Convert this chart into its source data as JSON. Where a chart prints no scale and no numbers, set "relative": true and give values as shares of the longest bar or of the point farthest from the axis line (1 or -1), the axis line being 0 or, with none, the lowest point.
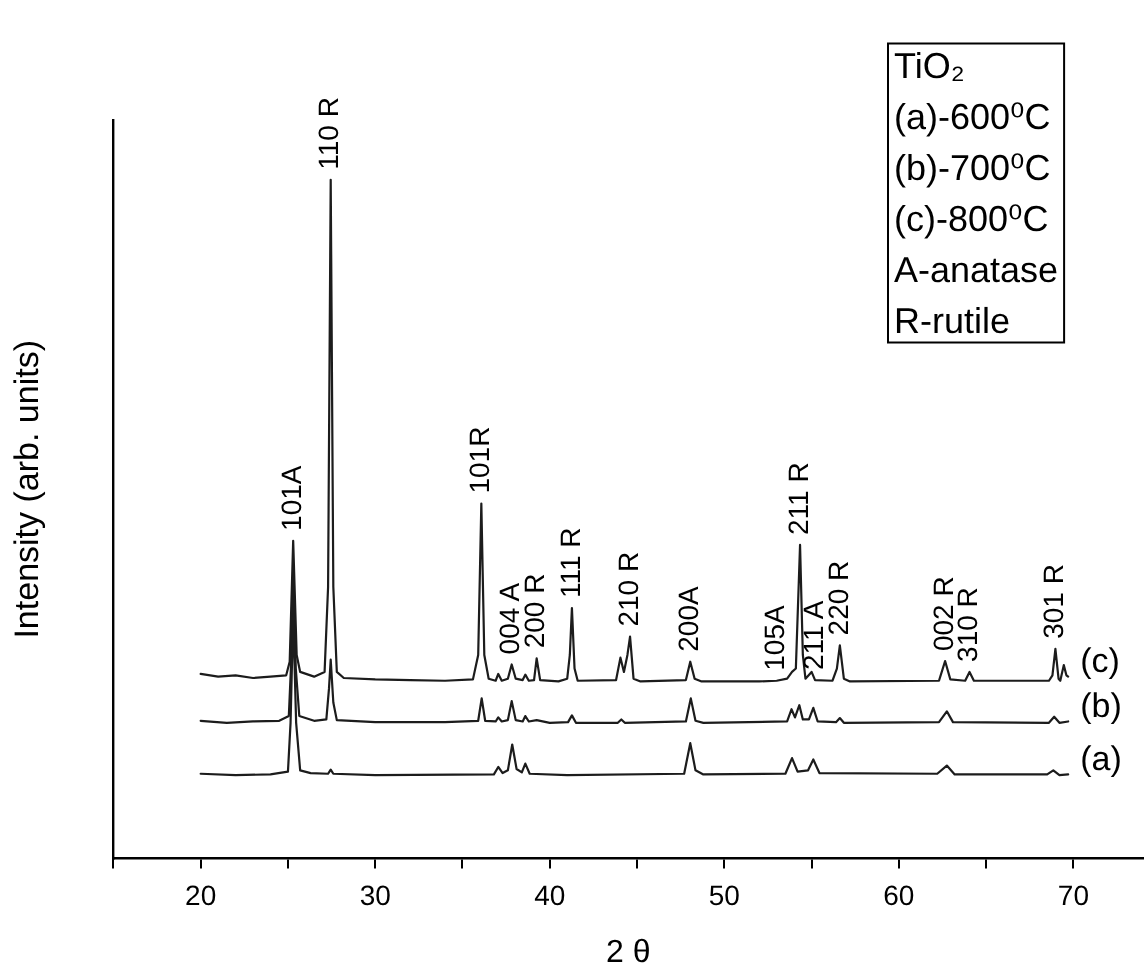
{
  "chart_data": {
    "type": "line",
    "relative": true,
    "xlabel": "2 θ",
    "ylabel": "Intensity (arb. units)",
    "xlim": [
      15,
      74
    ],
    "xticks": [
      {
        "value": 15,
        "label": null
      },
      20,
      {
        "value": 25,
        "label": null
      },
      30,
      {
        "value": 35,
        "label": null
      },
      40,
      {
        "value": 45,
        "label": null
      },
      50,
      {
        "value": 55,
        "label": null
      },
      60,
      {
        "value": 65,
        "label": null
      },
      70
    ],
    "series": [
      {
        "name": "(a)",
        "color": "#1c1c1c",
        "x": [
          20,
          22,
          24,
          25.0,
          25.15,
          25.3,
          25.47,
          25.7,
          26.3,
          27.3,
          27.45,
          27.6,
          30,
          36.8,
          37.05,
          37.3,
          37.6,
          37.85,
          38.1,
          38.4,
          38.6,
          38.85,
          41,
          47.7,
          48.05,
          48.35,
          48.8,
          53.5,
          53.88,
          54.2,
          54.8,
          55.1,
          55.45,
          62.2,
          62.75,
          63.2,
          68.5,
          68.85,
          69.2,
          69.7
        ],
        "values": [
          0.125,
          0.123,
          0.124,
          0.128,
          0.2,
          0.36,
          0.2,
          0.13,
          0.126,
          0.125,
          0.131,
          0.125,
          0.123,
          0.124,
          0.135,
          0.126,
          0.13,
          0.168,
          0.132,
          0.127,
          0.14,
          0.125,
          0.123,
          0.125,
          0.17,
          0.13,
          0.124,
          0.125,
          0.148,
          0.128,
          0.13,
          0.146,
          0.126,
          0.125,
          0.137,
          0.124,
          0.124,
          0.13,
          0.123,
          0.124
        ]
      },
      {
        "name": "(b)",
        "color": "#1c1c1c",
        "x": [
          20,
          21.5,
          23,
          24.5,
          25.05,
          25.17,
          25.3,
          25.45,
          25.65,
          26.5,
          27.2,
          27.35,
          27.45,
          27.6,
          27.8,
          30,
          34,
          35.9,
          36.1,
          36.3,
          36.9,
          37.05,
          37.25,
          37.6,
          37.82,
          38.05,
          38.45,
          38.6,
          38.8,
          39.25,
          40,
          41.05,
          41.27,
          41.5,
          43.9,
          44.1,
          44.3,
          47.8,
          48.08,
          48.35,
          48.8,
          53.6,
          53.85,
          54.05,
          54.3,
          54.5,
          54.85,
          55.1,
          55.35,
          56.4,
          56.62,
          56.85,
          62.3,
          62.75,
          63.1,
          68.6,
          68.9,
          69.2,
          69.7
        ],
        "values": [
          0.203,
          0.2,
          0.202,
          0.203,
          0.21,
          0.28,
          0.42,
          0.28,
          0.21,
          0.203,
          0.205,
          0.25,
          0.293,
          0.23,
          0.204,
          0.201,
          0.201,
          0.203,
          0.236,
          0.203,
          0.202,
          0.208,
          0.202,
          0.204,
          0.232,
          0.204,
          0.202,
          0.21,
          0.202,
          0.204,
          0.2,
          0.201,
          0.211,
          0.2,
          0.2,
          0.205,
          0.2,
          0.202,
          0.236,
          0.203,
          0.2,
          0.202,
          0.22,
          0.208,
          0.226,
          0.205,
          0.205,
          0.222,
          0.202,
          0.201,
          0.207,
          0.2,
          0.201,
          0.217,
          0.201,
          0.2,
          0.209,
          0.2,
          0.202
        ]
      },
      {
        "name": "(c)",
        "color": "#1c1c1c",
        "x": [
          20,
          21,
          22,
          23,
          24,
          24.9,
          25.1,
          25.3,
          25.5,
          25.7,
          26.5,
          27.1,
          27.3,
          27.45,
          27.6,
          27.8,
          28.2,
          30,
          32,
          34,
          35.6,
          35.9,
          36.08,
          36.25,
          36.5,
          36.9,
          37.05,
          37.25,
          37.6,
          37.82,
          38.05,
          38.45,
          38.6,
          38.8,
          39.1,
          39.25,
          39.45,
          40.5,
          41.0,
          41.15,
          41.27,
          41.42,
          41.6,
          43.8,
          44.05,
          44.25,
          44.45,
          44.6,
          44.8,
          45.2,
          47.8,
          48.05,
          48.3,
          48.7,
          52.0,
          53.0,
          53.6,
          53.88,
          54.1,
          54.34,
          54.5,
          54.65,
          55.0,
          55.2,
          56.2,
          56.45,
          56.62,
          56.85,
          57.2,
          62.3,
          62.65,
          62.95,
          63.8,
          64.05,
          64.3,
          68.6,
          68.8,
          68.97,
          69.15,
          69.25,
          69.45,
          69.6,
          69.7
        ],
        "values": [
          0.272,
          0.268,
          0.27,
          0.266,
          0.268,
          0.27,
          0.29,
          0.468,
          0.3,
          0.275,
          0.268,
          0.275,
          0.4,
          1.0,
          0.4,
          0.275,
          0.266,
          0.264,
          0.263,
          0.262,
          0.264,
          0.3,
          0.523,
          0.3,
          0.265,
          0.262,
          0.272,
          0.262,
          0.265,
          0.286,
          0.265,
          0.263,
          0.271,
          0.262,
          0.263,
          0.295,
          0.263,
          0.261,
          0.265,
          0.3,
          0.369,
          0.28,
          0.262,
          0.263,
          0.296,
          0.275,
          0.3,
          0.327,
          0.265,
          0.261,
          0.263,
          0.29,
          0.265,
          0.261,
          0.261,
          0.262,
          0.265,
          0.275,
          0.28,
          0.462,
          0.3,
          0.265,
          0.275,
          0.263,
          0.262,
          0.28,
          0.314,
          0.265,
          0.261,
          0.262,
          0.291,
          0.264,
          0.262,
          0.275,
          0.262,
          0.262,
          0.27,
          0.309,
          0.265,
          0.262,
          0.285,
          0.27,
          0.268
        ]
      }
    ],
    "annotations": [
      {
        "text": "101A",
        "x": 25.3,
        "y": 0.468
      },
      {
        "text": "110 R",
        "x": 27.45,
        "y": 1.0
      },
      {
        "text": "101R",
        "x": 36.08,
        "y": 0.523
      },
      {
        "text": "004 A",
        "x": 37.82,
        "y": 0.286
      },
      {
        "text": "200 R",
        "x": 39.25,
        "y": 0.295
      },
      {
        "text": "111 R",
        "x": 41.27,
        "y": 0.369
      },
      {
        "text": "210 R",
        "x": 44.6,
        "y": 0.327
      },
      {
        "text": "200A",
        "x": 48.05,
        "y": 0.29
      },
      {
        "text": "105A",
        "x": 53.0,
        "y": 0.262
      },
      {
        "text": "211 R",
        "x": 54.34,
        "y": 0.462
      },
      {
        "text": "211 A",
        "x": 55.2,
        "y": 0.263
      },
      {
        "text": "220 R",
        "x": 56.62,
        "y": 0.314
      },
      {
        "text": "002 R",
        "x": 62.65,
        "y": 0.291
      },
      {
        "text": "310 R",
        "x": 64.05,
        "y": 0.275
      },
      {
        "text": "301 R",
        "x": 68.97,
        "y": 0.309
      },
      "TiO₂",
      "(a)-600⁰C",
      "(b)-700⁰C",
      "(c)-800⁰C",
      "A-anatase",
      "R-rutile"
    ]
  }
}
